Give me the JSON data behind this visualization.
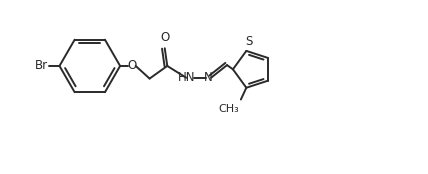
{
  "bg_color": "#ffffff",
  "line_color": "#2a2a2a",
  "line_width": 1.4,
  "font_size": 8.5,
  "figsize": [
    4.28,
    1.74
  ],
  "dpi": 100,
  "xlim": [
    0,
    10
  ],
  "ylim": [
    0,
    4.1
  ]
}
